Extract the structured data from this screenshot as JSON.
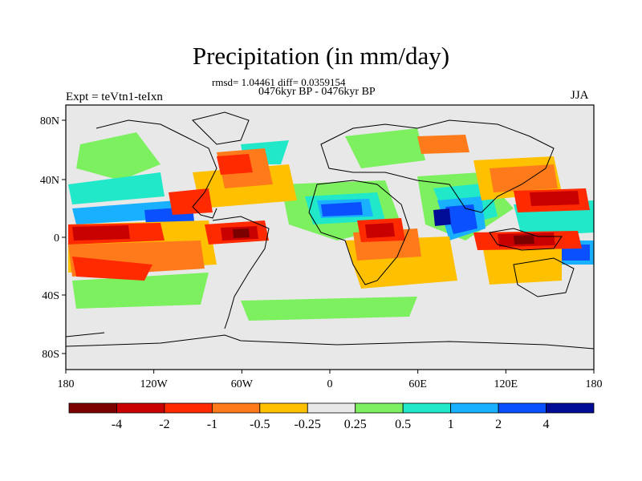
{
  "title": "Precipitation (in mm/day)",
  "stats": {
    "rmsd_label": "rmsd=",
    "rmsd": "1.04461",
    "diff_label": "diff=",
    "diff": "0.0359154"
  },
  "period": "0476kyr BP - 0476kyr BP",
  "experiment": "Expt = teVtn1-teIxn",
  "season": "JJA",
  "axes": {
    "lat_labels": [
      "80N",
      "40N",
      "0",
      "40S",
      "80S"
    ],
    "lon_labels": [
      "180",
      "120W",
      "60W",
      "0",
      "60E",
      "120E",
      "180"
    ]
  },
  "colorbar": {
    "colors": [
      "#7b0000",
      "#c80000",
      "#ff2a00",
      "#ff7a1a",
      "#ffc000",
      "#e8e8e8",
      "#7df060",
      "#20e8c8",
      "#18b0ff",
      "#0a50ff",
      "#000c96"
    ],
    "labels": [
      "-4",
      "-2",
      "-1",
      "-0.5",
      "-0.25",
      "0.25",
      "0.5",
      "1",
      "2",
      "4"
    ]
  },
  "colors": {
    "background_field": "#e8e8e8",
    "coastline": "#000000"
  }
}
